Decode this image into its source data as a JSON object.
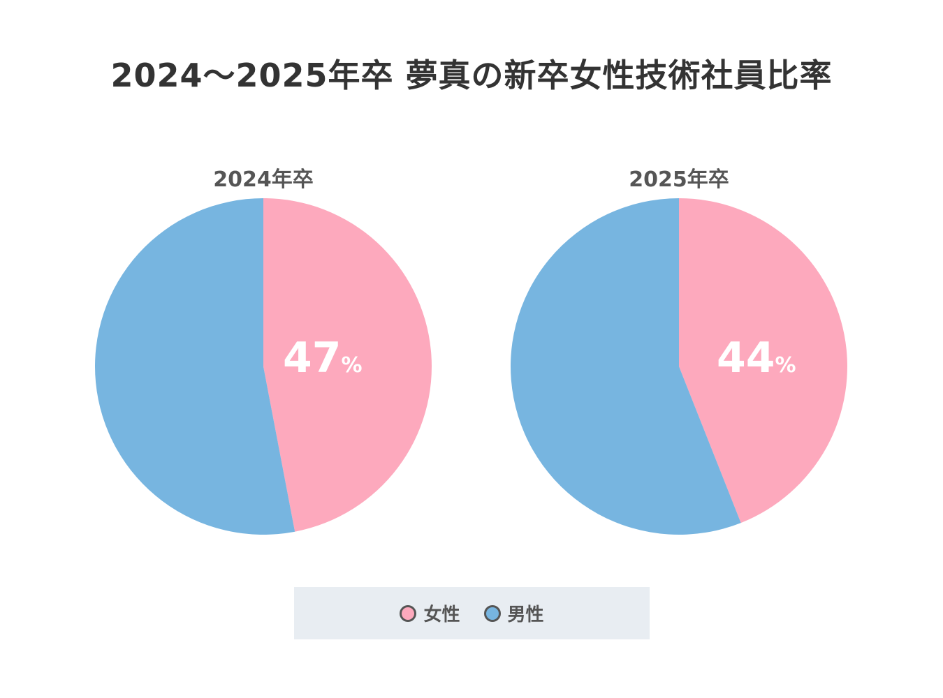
{
  "title": "2024〜2025年卒 夢真の新卒女性技術社員比率",
  "colors": {
    "female": "#fda9bd",
    "male": "#77b5e0"
  },
  "charts": [
    {
      "label": "2024年卒",
      "female_pct": "47",
      "unit": "%"
    },
    {
      "label": "2025年卒",
      "female_pct": "44",
      "unit": "%"
    }
  ],
  "legend": [
    {
      "label": "女性"
    },
    {
      "label": "男性"
    }
  ],
  "chart_data": [
    {
      "type": "pie",
      "title": "2024年卒",
      "categories": [
        "女性",
        "男性"
      ],
      "values": [
        47,
        53
      ]
    },
    {
      "type": "pie",
      "title": "2025年卒",
      "categories": [
        "女性",
        "男性"
      ],
      "values": [
        44,
        56
      ]
    }
  ]
}
